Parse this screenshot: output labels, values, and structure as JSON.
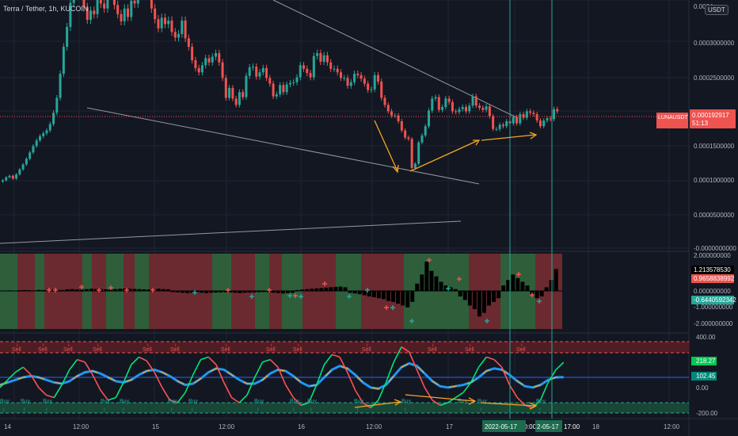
{
  "header": {
    "title": "Terra / Tether, 1h, KUCOIN",
    "currency": "USDT"
  },
  "price_axis": {
    "ticks": [
      "0.0004",
      "0.0003000000",
      "0.0002500000",
      "0.0002000000",
      "0.0001500000",
      "0.0001000000",
      "0.0000500000",
      "-0.0000000000"
    ]
  },
  "price_badge": {
    "symbol": "LUNAUSDT",
    "price": "0.000192917",
    "countdown": "51:13"
  },
  "osc1_axis": {
    "ticks": [
      "2.000000000",
      "1.213578530",
      "0.9658838992",
      "0.000000000",
      "-0.6440592342",
      "-1.000000000",
      "-2.000000000"
    ]
  },
  "osc2_axis": {
    "ticks": [
      "400.00",
      "218.27",
      "102.45",
      "0.00",
      "-200.00"
    ]
  },
  "time_axis": {
    "labels": [
      "14",
      "12:00",
      "15",
      "12:00",
      "16",
      "12:00",
      "17",
      "10:00",
      "17:00",
      "18",
      "12:00"
    ],
    "highlight_1": "2022-05-17",
    "highlight_2": "2-05-17"
  },
  "signals": {
    "sell": "Sell",
    "buy": "Buy"
  },
  "colors": {
    "bg": "#131722",
    "up": "#26a69a",
    "down": "#ef5350",
    "grid": "#1f2433",
    "orange": "#f5a623",
    "blue": "#2196f3",
    "green_line": "#00e676",
    "red_line": "#ff5252"
  },
  "chart_data": [
    {
      "type": "candlestick",
      "title": "Terra / Tether, 1h, KUCOIN",
      "ylim": [
        0,
        0.00035
      ],
      "ylabel": "USDT",
      "last_price": 0.000192917,
      "closes": [
        9.57e-05,
        9.98e-05,
        0.000102,
        9.8e-05,
        0.000104,
        0.000111,
        0.000118,
        0.000126,
        0.000135,
        0.000144,
        0.000152,
        0.000158,
        0.000162,
        0.000166,
        0.000175,
        0.000191,
        0.000212,
        0.000246,
        0.000284,
        0.000312,
        0.000346,
        0.000365,
        0.000371,
        0.00038,
        0.00034,
        0.000322,
        0.000335,
        0.00033,
        0.000352,
        0.000345,
        0.000338,
        0.000362,
        0.000379,
        0.000343,
        0.00033,
        0.00032,
        0.000338,
        0.000326,
        0.000349,
        0.000345,
        0.00037,
        0.000366,
        0.000357,
        0.000381,
        0.000338,
        0.000323,
        0.00031,
        0.000325,
        0.000316,
        0.000321,
        0.000305,
        0.000297,
        0.000302,
        0.000321,
        0.000296,
        0.000284,
        0.000265,
        0.000254,
        0.000248,
        0.000258,
        0.000268,
        0.000262,
        0.00027,
        0.000275,
        0.000262,
        0.00024,
        0.000212,
        0.000226,
        0.000211,
        0.000202,
        0.00022,
        0.000213,
        0.000243,
        0.000255,
        0.000256,
        0.000242,
        0.000248,
        0.000254,
        0.00024,
        0.000232,
        0.000214,
        0.000217,
        0.00023,
        0.00022,
        0.000231,
        0.000233,
        0.000234,
        0.000241,
        0.000258,
        0.000253,
        0.000247,
        0.000241,
        0.000271,
        0.000275,
        0.000263,
        0.000272,
        0.000262,
        0.000253,
        0.000253,
        0.000248,
        0.00024,
        0.00024,
        0.000229,
        0.000234,
        0.000246,
        0.000244,
        0.000239,
        0.000232,
        0.000223,
        0.000224,
        0.000244,
        0.000235,
        0.000212,
        0.000202,
        0.000193,
        0.000187,
        0.000187,
        0.000179,
        0.000166,
        0.000156,
        0.000154,
        0.000113,
        0.000119,
        0.000149,
        0.000159,
        0.000172,
        0.000194,
        0.000211,
        0.000213,
        0.000195,
        0.000199,
        0.000211,
        0.000206,
        0.000193,
        0.000192,
        0.000196,
        0.000199,
        0.000193,
        0.000201,
        0.000214,
        0.000201,
        0.000198,
        0.000195,
        0.0002,
        0.000186,
        0.000168,
        0.000168,
        0.000174,
        0.000172,
        0.000179,
        0.000176,
        0.000185,
        0.000176,
        0.000189,
        0.000184,
        0.000193,
        0.000191,
        0.000189,
        0.00018,
        0.000172,
        0.00018,
        0.000183,
        0.000182,
        0.000196,
        0.000193
      ]
    },
    {
      "type": "bar",
      "title": "",
      "ylim": [
        -2,
        2
      ],
      "note_values": [
        1.21357853,
        0.9658838992,
        -0.6440592342
      ],
      "values": [
        0.02,
        0.03,
        0.02,
        0.04,
        0.05,
        0.04,
        0.03,
        0.06,
        0.05,
        0.07,
        0.08,
        0.06,
        0.05,
        0.09,
        0.1,
        0.08,
        0.07,
        0.1,
        0.12,
        0.11,
        0.1,
        0.09,
        0.08,
        0.1,
        0.12,
        0.13,
        0.12,
        0.11,
        0.1,
        0.09,
        0.08,
        0.1,
        0.12,
        0.1,
        0.09,
        -0.06,
        -0.08,
        -0.1,
        -0.12,
        -0.1,
        -0.08,
        -0.1,
        -0.12,
        -0.1,
        -0.09,
        -0.08,
        -0.07,
        -0.08,
        -0.1,
        -0.12,
        -0.1,
        -0.09,
        -0.08,
        -0.07,
        -0.06,
        -0.08,
        -0.1,
        -0.12,
        -0.14,
        -0.12,
        -0.1,
        0.05,
        0.08,
        0.1,
        0.12,
        0.14,
        0.16,
        0.18,
        0.2,
        0.22,
        0.24,
        0.2,
        -0.1,
        -0.14,
        -0.18,
        -0.24,
        -0.3,
        -0.35,
        -0.4,
        -0.45,
        -0.55,
        -0.6,
        -0.7,
        -0.8,
        -0.9,
        -0.6,
        0.4,
        0.9,
        1.6,
        1.1,
        0.8,
        0.5,
        0.3,
        0.2,
        0.1,
        -0.3,
        -0.5,
        -0.8,
        -1.0,
        -1.4,
        -1.2,
        -0.8,
        -0.6,
        -0.4,
        0.3,
        0.6,
        0.9,
        0.7,
        0.5,
        0.3,
        -0.2,
        -0.4,
        -0.3,
        0.2,
        0.6,
        1.2
      ]
    },
    {
      "type": "line",
      "title": "",
      "ylim": [
        -200,
        400
      ],
      "last_values": [
        218.27,
        102.45
      ],
      "series": [
        {
          "values": [
            20,
            80,
            140,
            180,
            120,
            20,
            -40,
            -60,
            40,
            160,
            240,
            220,
            120,
            0,
            -80,
            -60,
            60,
            200,
            260,
            230,
            140,
            20,
            -80,
            -100,
            -20,
            120,
            240,
            260,
            200,
            60,
            -60,
            -100,
            -40,
            100,
            220,
            240,
            180,
            40,
            -60,
            -120,
            -100,
            40,
            200,
            280,
            260,
            140,
            0,
            -100,
            -140,
            -80,
            60,
            220,
            340,
            300,
            160,
            20,
            -80,
            -120,
            -100,
            -60,
            -20,
            60,
            180,
            260,
            240,
            180,
            40,
            -60,
            -120,
            -140,
            -80,
            60,
            160,
            218
          ]
        },
        {
          "values": [
            40,
            60,
            80,
            100,
            110,
            100,
            80,
            60,
            50,
            70,
            110,
            140,
            150,
            130,
            100,
            70,
            60,
            80,
            120,
            150,
            160,
            140,
            110,
            70,
            40,
            50,
            90,
            140,
            170,
            160,
            120,
            80,
            50,
            50,
            80,
            130,
            160,
            150,
            110,
            60,
            30,
            40,
            100,
            160,
            190,
            170,
            120,
            60,
            20,
            10,
            40,
            110,
            180,
            210,
            190,
            130,
            70,
            30,
            20,
            30,
            40,
            60,
            100,
            150,
            170,
            160,
            120,
            70,
            30,
            20,
            40,
            80,
            100,
            102
          ]
        }
      ]
    }
  ]
}
